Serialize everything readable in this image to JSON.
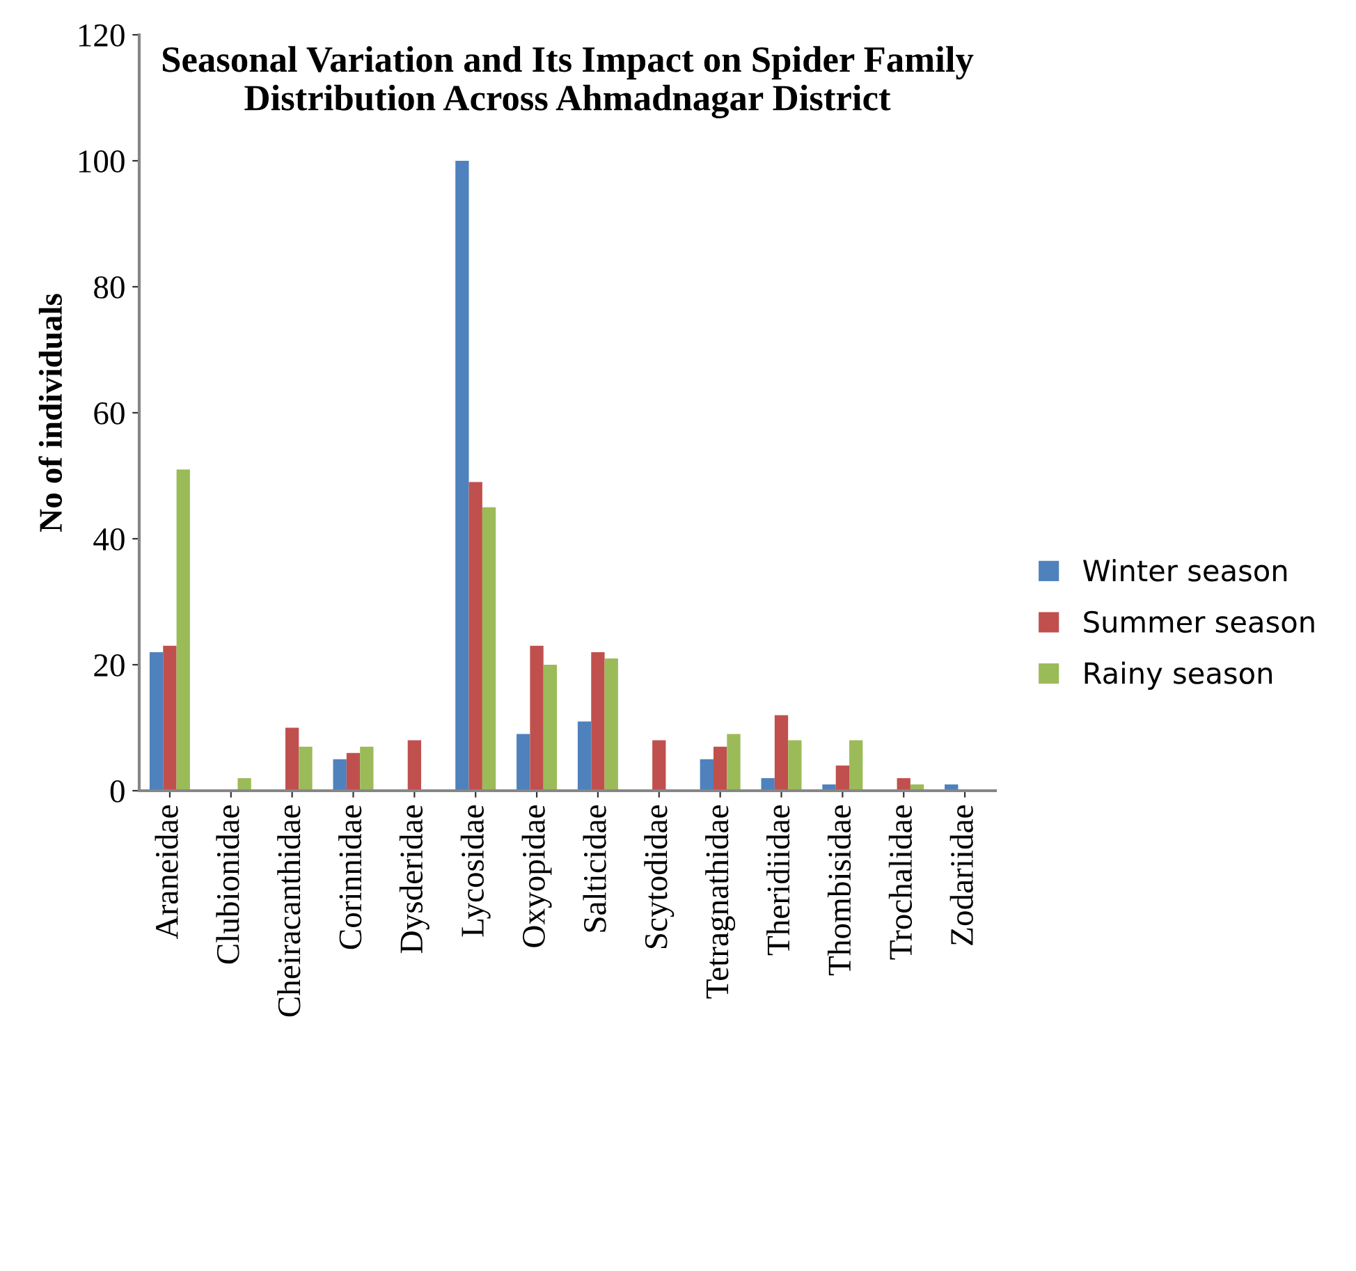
{
  "chart_data": {
    "type": "bar",
    "title": "Seasonal Variation and Its Impact on Spider Family\nDistribution Across Ahmadnagar District",
    "ylabel": "No of individuals",
    "categories": [
      "Araneidae",
      "Clubionidae",
      "Cheiracanthidae",
      "Corinnidae",
      "Dysderidae",
      "Lycosidae",
      "Oxyopidae",
      "Salticidae",
      "Scytodidae",
      "Tetragnathidae",
      "Theridiidae",
      "Thombisidae",
      "Trochalidae",
      "Zodariidae"
    ],
    "series": [
      {
        "name": "Winter season",
        "color": "#4f81bd",
        "values": [
          22,
          0,
          0,
          5,
          0,
          100,
          9,
          11,
          0,
          5,
          2,
          1,
          0,
          1
        ]
      },
      {
        "name": "Summer season",
        "color": "#c0504d",
        "values": [
          23,
          0,
          10,
          6,
          8,
          49,
          23,
          22,
          8,
          7,
          12,
          4,
          2,
          0
        ]
      },
      {
        "name": "Rainy season",
        "color": "#9bbb59",
        "values": [
          51,
          2,
          7,
          7,
          0,
          45,
          20,
          21,
          0,
          9,
          8,
          8,
          1,
          0
        ]
      }
    ],
    "ylim": [
      0,
      120
    ],
    "yticks": [
      0,
      20,
      40,
      60,
      80,
      100,
      120
    ],
    "grid": false,
    "legend": "right"
  }
}
